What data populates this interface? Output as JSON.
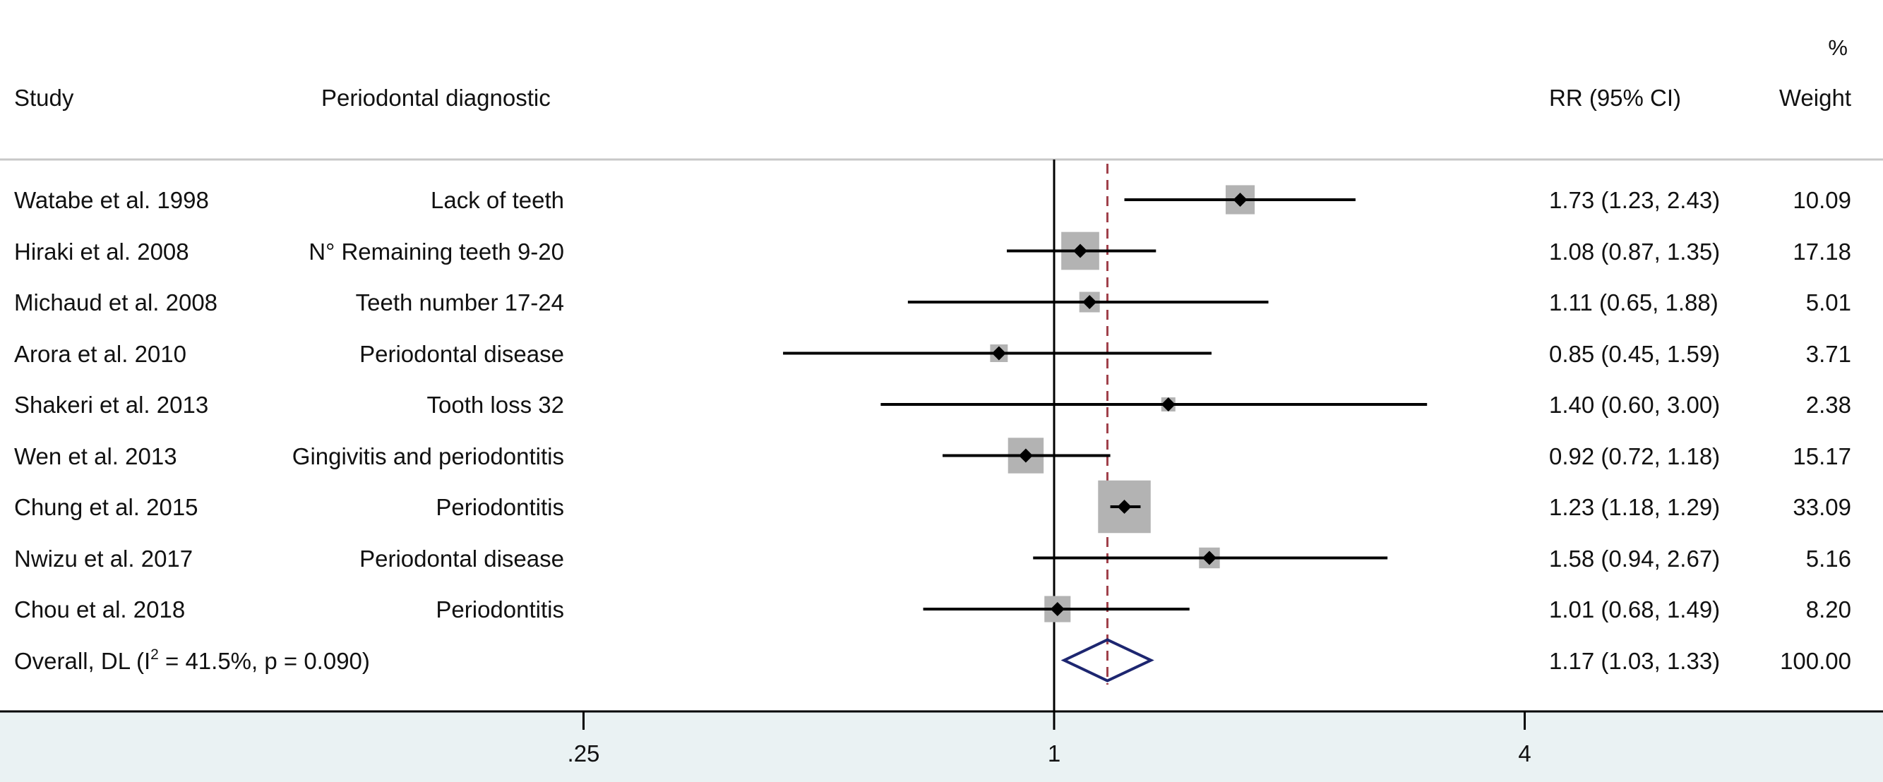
{
  "headers": {
    "study": "Study",
    "diagnostic": "Periodontal diagnostic",
    "rr": "RR (95% CI)",
    "weight_pct": "%",
    "weight": "Weight"
  },
  "overall": {
    "label_prefix": "Overall, DL (I",
    "label_sup": "2",
    "label_suffix": " = 41.5%, p = 0.090)",
    "rr_text": "1.17 (1.03, 1.33)",
    "weight": "100.00"
  },
  "chart_data": {
    "type": "forest",
    "measure": "RR",
    "x_scale": "log",
    "x_ticks": [
      0.25,
      1,
      4
    ],
    "x_tick_labels": [
      ".25",
      "1",
      "4"
    ],
    "null_line": 1,
    "pooled_estimate_line": 1.17,
    "studies": [
      {
        "study": "Watabe et al. 1998",
        "diagnostic": "Lack of teeth",
        "rr": 1.73,
        "lower": 1.23,
        "upper": 2.43,
        "ci_text": "1.73 (1.23, 2.43)",
        "weight": 10.09,
        "weight_text": "10.09"
      },
      {
        "study": "Hiraki et al. 2008",
        "diagnostic": "N° Remaining teeth 9-20",
        "rr": 1.08,
        "lower": 0.87,
        "upper": 1.35,
        "ci_text": "1.08 (0.87, 1.35)",
        "weight": 17.18,
        "weight_text": "17.18"
      },
      {
        "study": "Michaud et al. 2008",
        "diagnostic": "Teeth number 17-24",
        "rr": 1.11,
        "lower": 0.65,
        "upper": 1.88,
        "ci_text": "1.11 (0.65, 1.88)",
        "weight": 5.01,
        "weight_text": "5.01"
      },
      {
        "study": "Arora et al. 2010",
        "diagnostic": "Periodontal disease",
        "rr": 0.85,
        "lower": 0.45,
        "upper": 1.59,
        "ci_text": "0.85 (0.45, 1.59)",
        "weight": 3.71,
        "weight_text": "3.71"
      },
      {
        "study": "Shakeri et al. 2013",
        "diagnostic": "Tooth loss 32",
        "rr": 1.4,
        "lower": 0.6,
        "upper": 3.0,
        "ci_text": "1.40 (0.60, 3.00)",
        "weight": 2.38,
        "weight_text": "2.38"
      },
      {
        "study": "Wen et al. 2013",
        "diagnostic": "Gingivitis and periodontitis",
        "rr": 0.92,
        "lower": 0.72,
        "upper": 1.18,
        "ci_text": "0.92 (0.72, 1.18)",
        "weight": 15.17,
        "weight_text": "15.17"
      },
      {
        "study": "Chung et al. 2015",
        "diagnostic": "Periodontitis",
        "rr": 1.23,
        "lower": 1.18,
        "upper": 1.29,
        "ci_text": "1.23 (1.18, 1.29)",
        "weight": 33.09,
        "weight_text": "33.09"
      },
      {
        "study": "Nwizu et al. 2017",
        "diagnostic": "Periodontal disease",
        "rr": 1.58,
        "lower": 0.94,
        "upper": 2.67,
        "ci_text": "1.58 (0.94, 2.67)",
        "weight": 5.16,
        "weight_text": "5.16"
      },
      {
        "study": "Chou et al. 2018",
        "diagnostic": "Periodontitis",
        "rr": 1.01,
        "lower": 0.68,
        "upper": 1.49,
        "ci_text": "1.01 (0.68, 1.49)",
        "weight": 8.2,
        "weight_text": "8.20"
      }
    ],
    "pooled": {
      "rr": 1.17,
      "lower": 1.03,
      "upper": 1.33
    },
    "colors": {
      "ci_line": "#000000",
      "weight_box": "#b3b3b3",
      "point": "#000000",
      "null_line": "#000000",
      "pooled_line": "#a0404a",
      "diamond": "#1d2670",
      "footer_band": "#eaf2f3"
    }
  }
}
